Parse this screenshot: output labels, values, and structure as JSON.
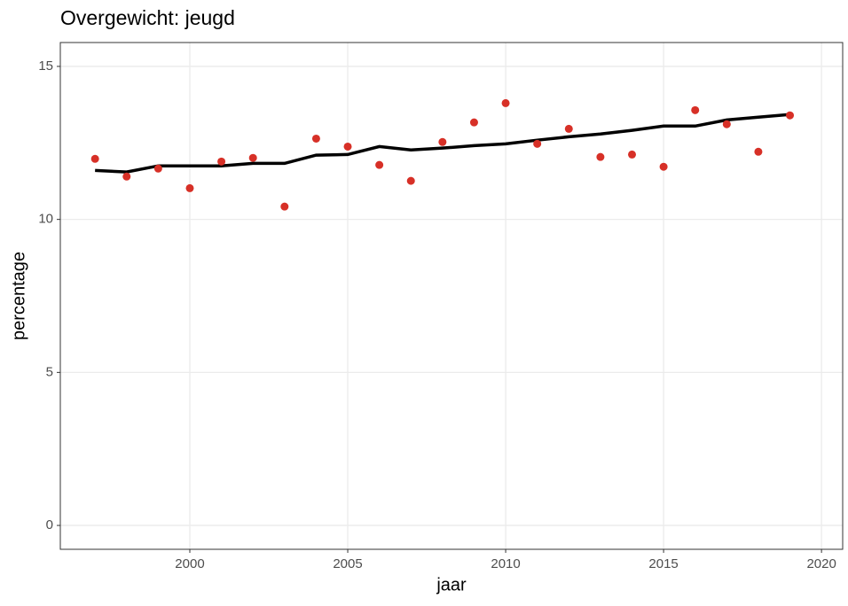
{
  "chart_data": {
    "type": "scatter",
    "title": "Overgewicht: jeugd",
    "xlabel": "jaar",
    "ylabel": "percentage",
    "x": [
      1997,
      1998,
      1999,
      2000,
      2001,
      2002,
      2003,
      2004,
      2005,
      2006,
      2007,
      2008,
      2009,
      2010,
      2011,
      2012,
      2013,
      2014,
      2015,
      2016,
      2017,
      2018,
      2019
    ],
    "values": [
      11.98,
      11.4,
      11.66,
      11.02,
      11.89,
      12.01,
      10.42,
      12.64,
      12.38,
      11.78,
      11.26,
      12.53,
      13.17,
      13.8,
      12.47,
      12.96,
      12.04,
      12.12,
      11.72,
      13.57,
      13.11,
      12.21,
      13.4
    ],
    "color": "#d73027",
    "trend": {
      "type": "line",
      "color": "#000000",
      "values": [
        11.6,
        11.55,
        11.75,
        11.75,
        11.75,
        11.83,
        11.83,
        12.1,
        12.12,
        12.38,
        12.27,
        12.33,
        12.41,
        12.47,
        12.59,
        12.7,
        12.79,
        12.91,
        13.05,
        13.05,
        13.25,
        13.34,
        13.43
      ]
    },
    "xlim": [
      1995.9,
      2020.67
    ],
    "ylim": [
      -0.78,
      15.78
    ],
    "xticks": [
      2000,
      2005,
      2010,
      2015,
      2020
    ],
    "yticks": [
      0,
      5,
      10,
      15
    ],
    "grid": true
  }
}
